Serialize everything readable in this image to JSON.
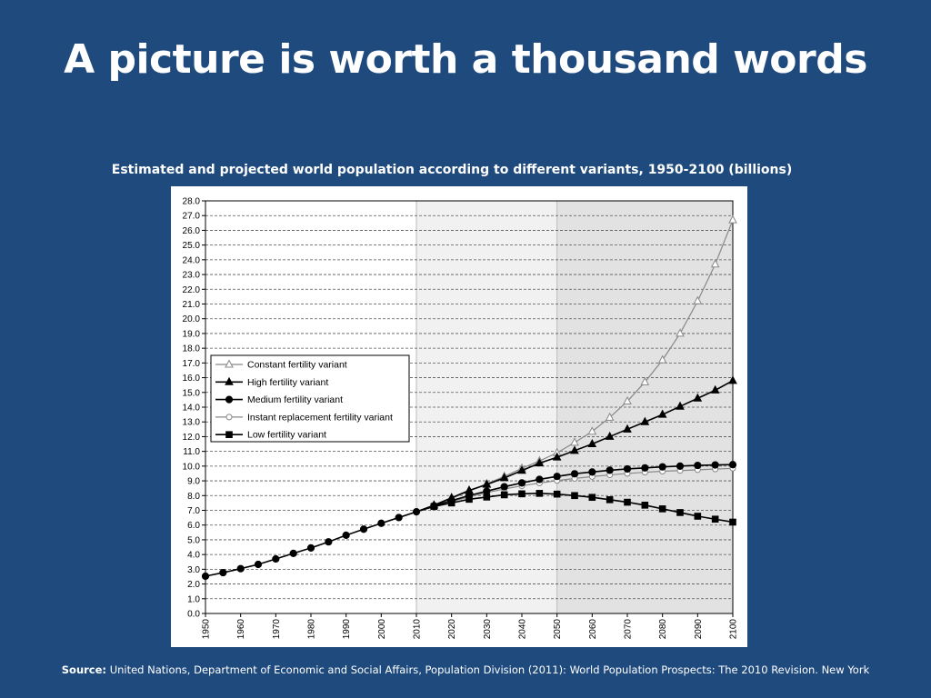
{
  "slide": {
    "title": "A picture is worth a thousand words",
    "source_label": "Source:",
    "source_text": "United Nations, Department of Economic and Social Affairs, Population Division (2011): World Population Prospects: The 2010 Revision. New York"
  },
  "colors": {
    "background": "#1f4a7d",
    "panel": "#ffffff",
    "shade_light": "#f1f1f1",
    "shade_dark": "#e2e2e2",
    "line_dark": "#000000",
    "line_grey": "#888888"
  },
  "chart_data": {
    "type": "line",
    "title": "Estimated and projected world population according to different variants, 1950-2100 (billions)",
    "xlabel": "",
    "ylabel": "",
    "xlim": [
      1950,
      2100
    ],
    "ylim": [
      0,
      28
    ],
    "y_ticks": [
      "0.0",
      "1.0",
      "2.0",
      "3.0",
      "4.0",
      "5.0",
      "6.0",
      "7.0",
      "8.0",
      "9.0",
      "10.0",
      "11.0",
      "12.0",
      "13.0",
      "14.0",
      "15.0",
      "16.0",
      "17.0",
      "18.0",
      "19.0",
      "20.0",
      "21.0",
      "22.0",
      "23.0",
      "24.0",
      "25.0",
      "26.0",
      "27.0",
      "28.0"
    ],
    "x_ticks": [
      "1950",
      "1960",
      "1970",
      "1980",
      "1990",
      "2000",
      "2010",
      "2020",
      "2030",
      "2040",
      "2050",
      "2060",
      "2070",
      "2080",
      "2090",
      "2100"
    ],
    "grid": "horizontal dashed",
    "shaded_periods": [
      [
        2010,
        2050
      ],
      [
        2050,
        2100
      ]
    ],
    "legend_position": "left-middle",
    "historical": {
      "x": [
        1950,
        1955,
        1960,
        1965,
        1970,
        1975,
        1980,
        1985,
        1990,
        1995,
        2000,
        2005,
        2010
      ],
      "values": [
        2.53,
        2.77,
        3.04,
        3.33,
        3.7,
        4.08,
        4.45,
        4.86,
        5.31,
        5.72,
        6.12,
        6.51,
        6.9
      ]
    },
    "x": [
      2010,
      2015,
      2020,
      2025,
      2030,
      2035,
      2040,
      2045,
      2050,
      2055,
      2060,
      2065,
      2070,
      2075,
      2080,
      2085,
      2090,
      2095,
      2100
    ],
    "series": [
      {
        "name": "Constant fertility variant",
        "marker": "triangle-open",
        "color": "#888888",
        "values": [
          6.9,
          7.33,
          7.8,
          8.3,
          8.8,
          9.3,
          9.85,
          10.35,
          10.9,
          11.6,
          12.35,
          13.3,
          14.4,
          15.7,
          17.2,
          19.0,
          21.2,
          23.7,
          26.7
        ]
      },
      {
        "name": "High fertility variant",
        "marker": "triangle-filled",
        "color": "#000000",
        "values": [
          6.9,
          7.35,
          7.85,
          8.35,
          8.75,
          9.2,
          9.7,
          10.2,
          10.6,
          11.05,
          11.5,
          12.0,
          12.5,
          13.0,
          13.5,
          14.05,
          14.6,
          15.15,
          15.8
        ]
      },
      {
        "name": "Medium fertility variant",
        "marker": "circle-filled",
        "color": "#000000",
        "values": [
          6.9,
          7.3,
          7.66,
          8.0,
          8.3,
          8.6,
          8.86,
          9.1,
          9.3,
          9.48,
          9.6,
          9.72,
          9.81,
          9.88,
          9.95,
          10.0,
          10.05,
          10.08,
          10.1
        ]
      },
      {
        "name": "Instant replacement fertility variant",
        "marker": "circle-open",
        "color": "#888888",
        "values": [
          6.9,
          7.28,
          7.6,
          7.9,
          8.2,
          8.45,
          8.66,
          8.85,
          9.02,
          9.16,
          9.29,
          9.4,
          9.5,
          9.58,
          9.65,
          9.7,
          9.75,
          9.8,
          9.85
        ]
      },
      {
        "name": "Low fertility variant",
        "marker": "square-filled",
        "color": "#000000",
        "values": [
          6.9,
          7.26,
          7.5,
          7.75,
          7.9,
          8.05,
          8.12,
          8.15,
          8.1,
          8.0,
          7.88,
          7.72,
          7.55,
          7.35,
          7.1,
          6.85,
          6.6,
          6.4,
          6.2
        ]
      }
    ]
  }
}
